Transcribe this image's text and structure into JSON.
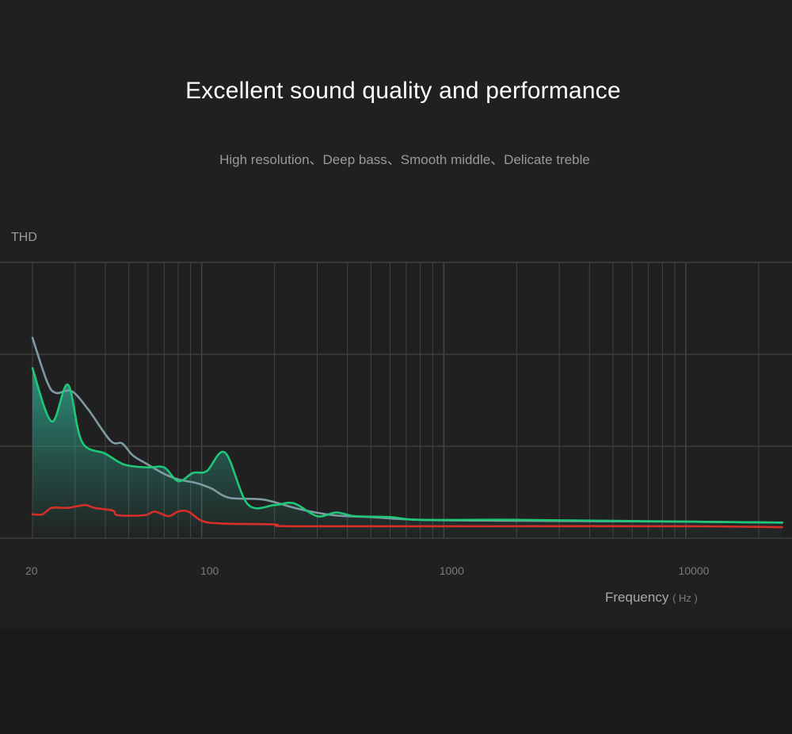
{
  "header": {
    "title": "Excellent sound quality and performance",
    "subtitle": "High resolution、Deep bass、Smooth middle、Delicate treble"
  },
  "chart_data": {
    "type": "area",
    "ylabel": "THD",
    "xlabel": "Frequency",
    "xlabel_unit": "( Hz )",
    "x_scale": "log",
    "xlim": [
      20,
      25000
    ],
    "ylim": [
      0,
      3
    ],
    "x_ticks": [
      20,
      100,
      1000,
      10000
    ],
    "grid": true,
    "legend": "none",
    "colors": {
      "green": "#1fc779",
      "gray": "#7e9aa2",
      "red": "#d62f2a",
      "grid": "#444444",
      "fill_top": "#2ea48c"
    },
    "series": [
      {
        "color": "green",
        "filled": true,
        "points": [
          [
            20,
            1.85
          ],
          [
            24,
            1.27
          ],
          [
            28,
            1.67
          ],
          [
            32,
            1.05
          ],
          [
            40,
            0.92
          ],
          [
            48,
            0.8
          ],
          [
            60,
            0.77
          ],
          [
            70,
            0.77
          ],
          [
            80,
            0.62
          ],
          [
            92,
            0.71
          ],
          [
            105,
            0.73
          ],
          [
            125,
            0.93
          ],
          [
            155,
            0.37
          ],
          [
            200,
            0.36
          ],
          [
            240,
            0.38
          ],
          [
            300,
            0.24
          ],
          [
            360,
            0.28
          ],
          [
            430,
            0.24
          ],
          [
            600,
            0.23
          ],
          [
            800,
            0.2
          ],
          [
            2000,
            0.2
          ],
          [
            10000,
            0.18
          ],
          [
            25000,
            0.17
          ]
        ]
      },
      {
        "color": "gray",
        "points": [
          [
            20,
            2.18
          ],
          [
            23,
            1.7
          ],
          [
            25,
            1.58
          ],
          [
            29,
            1.6
          ],
          [
            34,
            1.4
          ],
          [
            42,
            1.06
          ],
          [
            47,
            1.03
          ],
          [
            52,
            0.9
          ],
          [
            60,
            0.8
          ],
          [
            70,
            0.7
          ],
          [
            80,
            0.64
          ],
          [
            95,
            0.6
          ],
          [
            110,
            0.54
          ],
          [
            130,
            0.44
          ],
          [
            180,
            0.42
          ],
          [
            250,
            0.32
          ],
          [
            350,
            0.25
          ],
          [
            500,
            0.23
          ],
          [
            800,
            0.2
          ],
          [
            2000,
            0.19
          ],
          [
            10000,
            0.18
          ],
          [
            25000,
            0.17
          ]
        ]
      },
      {
        "color": "red",
        "points": [
          [
            20,
            0.26
          ],
          [
            22,
            0.26
          ],
          [
            24,
            0.33
          ],
          [
            28,
            0.33
          ],
          [
            33,
            0.36
          ],
          [
            36,
            0.33
          ],
          [
            43,
            0.3
          ],
          [
            45,
            0.25
          ],
          [
            58,
            0.25
          ],
          [
            64,
            0.29
          ],
          [
            73,
            0.24
          ],
          [
            80,
            0.29
          ],
          [
            88,
            0.29
          ],
          [
            100,
            0.19
          ],
          [
            120,
            0.16
          ],
          [
            200,
            0.15
          ],
          [
            230,
            0.13
          ],
          [
            1000,
            0.13
          ],
          [
            10000,
            0.13
          ],
          [
            25000,
            0.12
          ]
        ]
      }
    ]
  }
}
